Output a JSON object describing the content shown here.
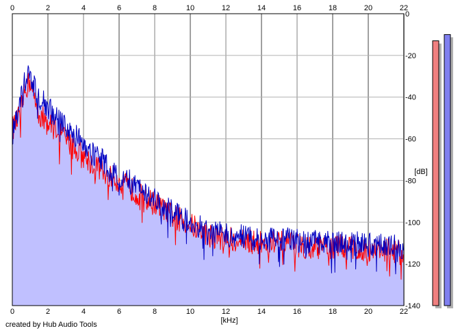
{
  "footer_text": "created by Hub Audio Tools",
  "chart_data": {
    "type": "area",
    "xlabel": "[kHz]",
    "ylabel": "[dB]",
    "xlim": [
      0,
      22
    ],
    "ylim": [
      -140,
      0
    ],
    "x_ticks": [
      0,
      2,
      4,
      6,
      8,
      10,
      12,
      14,
      16,
      18,
      20,
      22
    ],
    "y_ticks": [
      0,
      -20,
      -40,
      -60,
      -80,
      -100,
      -120,
      -140
    ],
    "grid": true,
    "fill_color": "#c0c0ff",
    "series": [
      {
        "color": "#ff0000",
        "x": [
          0,
          0.25,
          0.5,
          0.75,
          1.0,
          1.5,
          2.0,
          2.5,
          3.0,
          3.5,
          4.0,
          4.5,
          5.0,
          5.5,
          6.0,
          6.5,
          7.0,
          7.5,
          8.0,
          8.5,
          9.0,
          9.5,
          10.0,
          10.5,
          11.0,
          12.0,
          13.0,
          14.0,
          15.0,
          16.0,
          17.0,
          18.0,
          19.0,
          20.0,
          21.0,
          22.0
        ],
        "y": [
          -55,
          -52,
          -45,
          -36,
          -32,
          -48,
          -53,
          -55,
          -60,
          -65,
          -68,
          -72,
          -75,
          -78,
          -80,
          -83,
          -86,
          -89,
          -91,
          -94,
          -97,
          -99,
          -101,
          -104,
          -106,
          -108,
          -109,
          -110,
          -110,
          -111,
          -112,
          -112,
          -112,
          -113,
          -113,
          -115
        ]
      },
      {
        "color": "#0000c0",
        "x": [
          0,
          0.25,
          0.5,
          0.75,
          1.0,
          1.5,
          2.0,
          2.5,
          3.0,
          3.5,
          4.0,
          4.5,
          5.0,
          5.5,
          6.0,
          6.5,
          7.0,
          7.5,
          8.0,
          8.5,
          9.0,
          9.5,
          10.0,
          10.5,
          11.0,
          12.0,
          13.0,
          14.0,
          15.0,
          16.0,
          17.0,
          18.0,
          19.0,
          20.0,
          21.0,
          22.0
        ],
        "y": [
          -58,
          -50,
          -40,
          -28,
          -30,
          -40,
          -45,
          -50,
          -54,
          -58,
          -62,
          -66,
          -70,
          -74,
          -77,
          -80,
          -83,
          -86,
          -89,
          -92,
          -95,
          -98,
          -100,
          -102,
          -104,
          -106,
          -107,
          -108,
          -108,
          -109,
          -109,
          -110,
          -110,
          -111,
          -111,
          -113
        ]
      }
    ],
    "level_meters": [
      {
        "color": "#f08080",
        "level_db": -13
      },
      {
        "color": "#8080f0",
        "level_db": -10
      }
    ]
  }
}
